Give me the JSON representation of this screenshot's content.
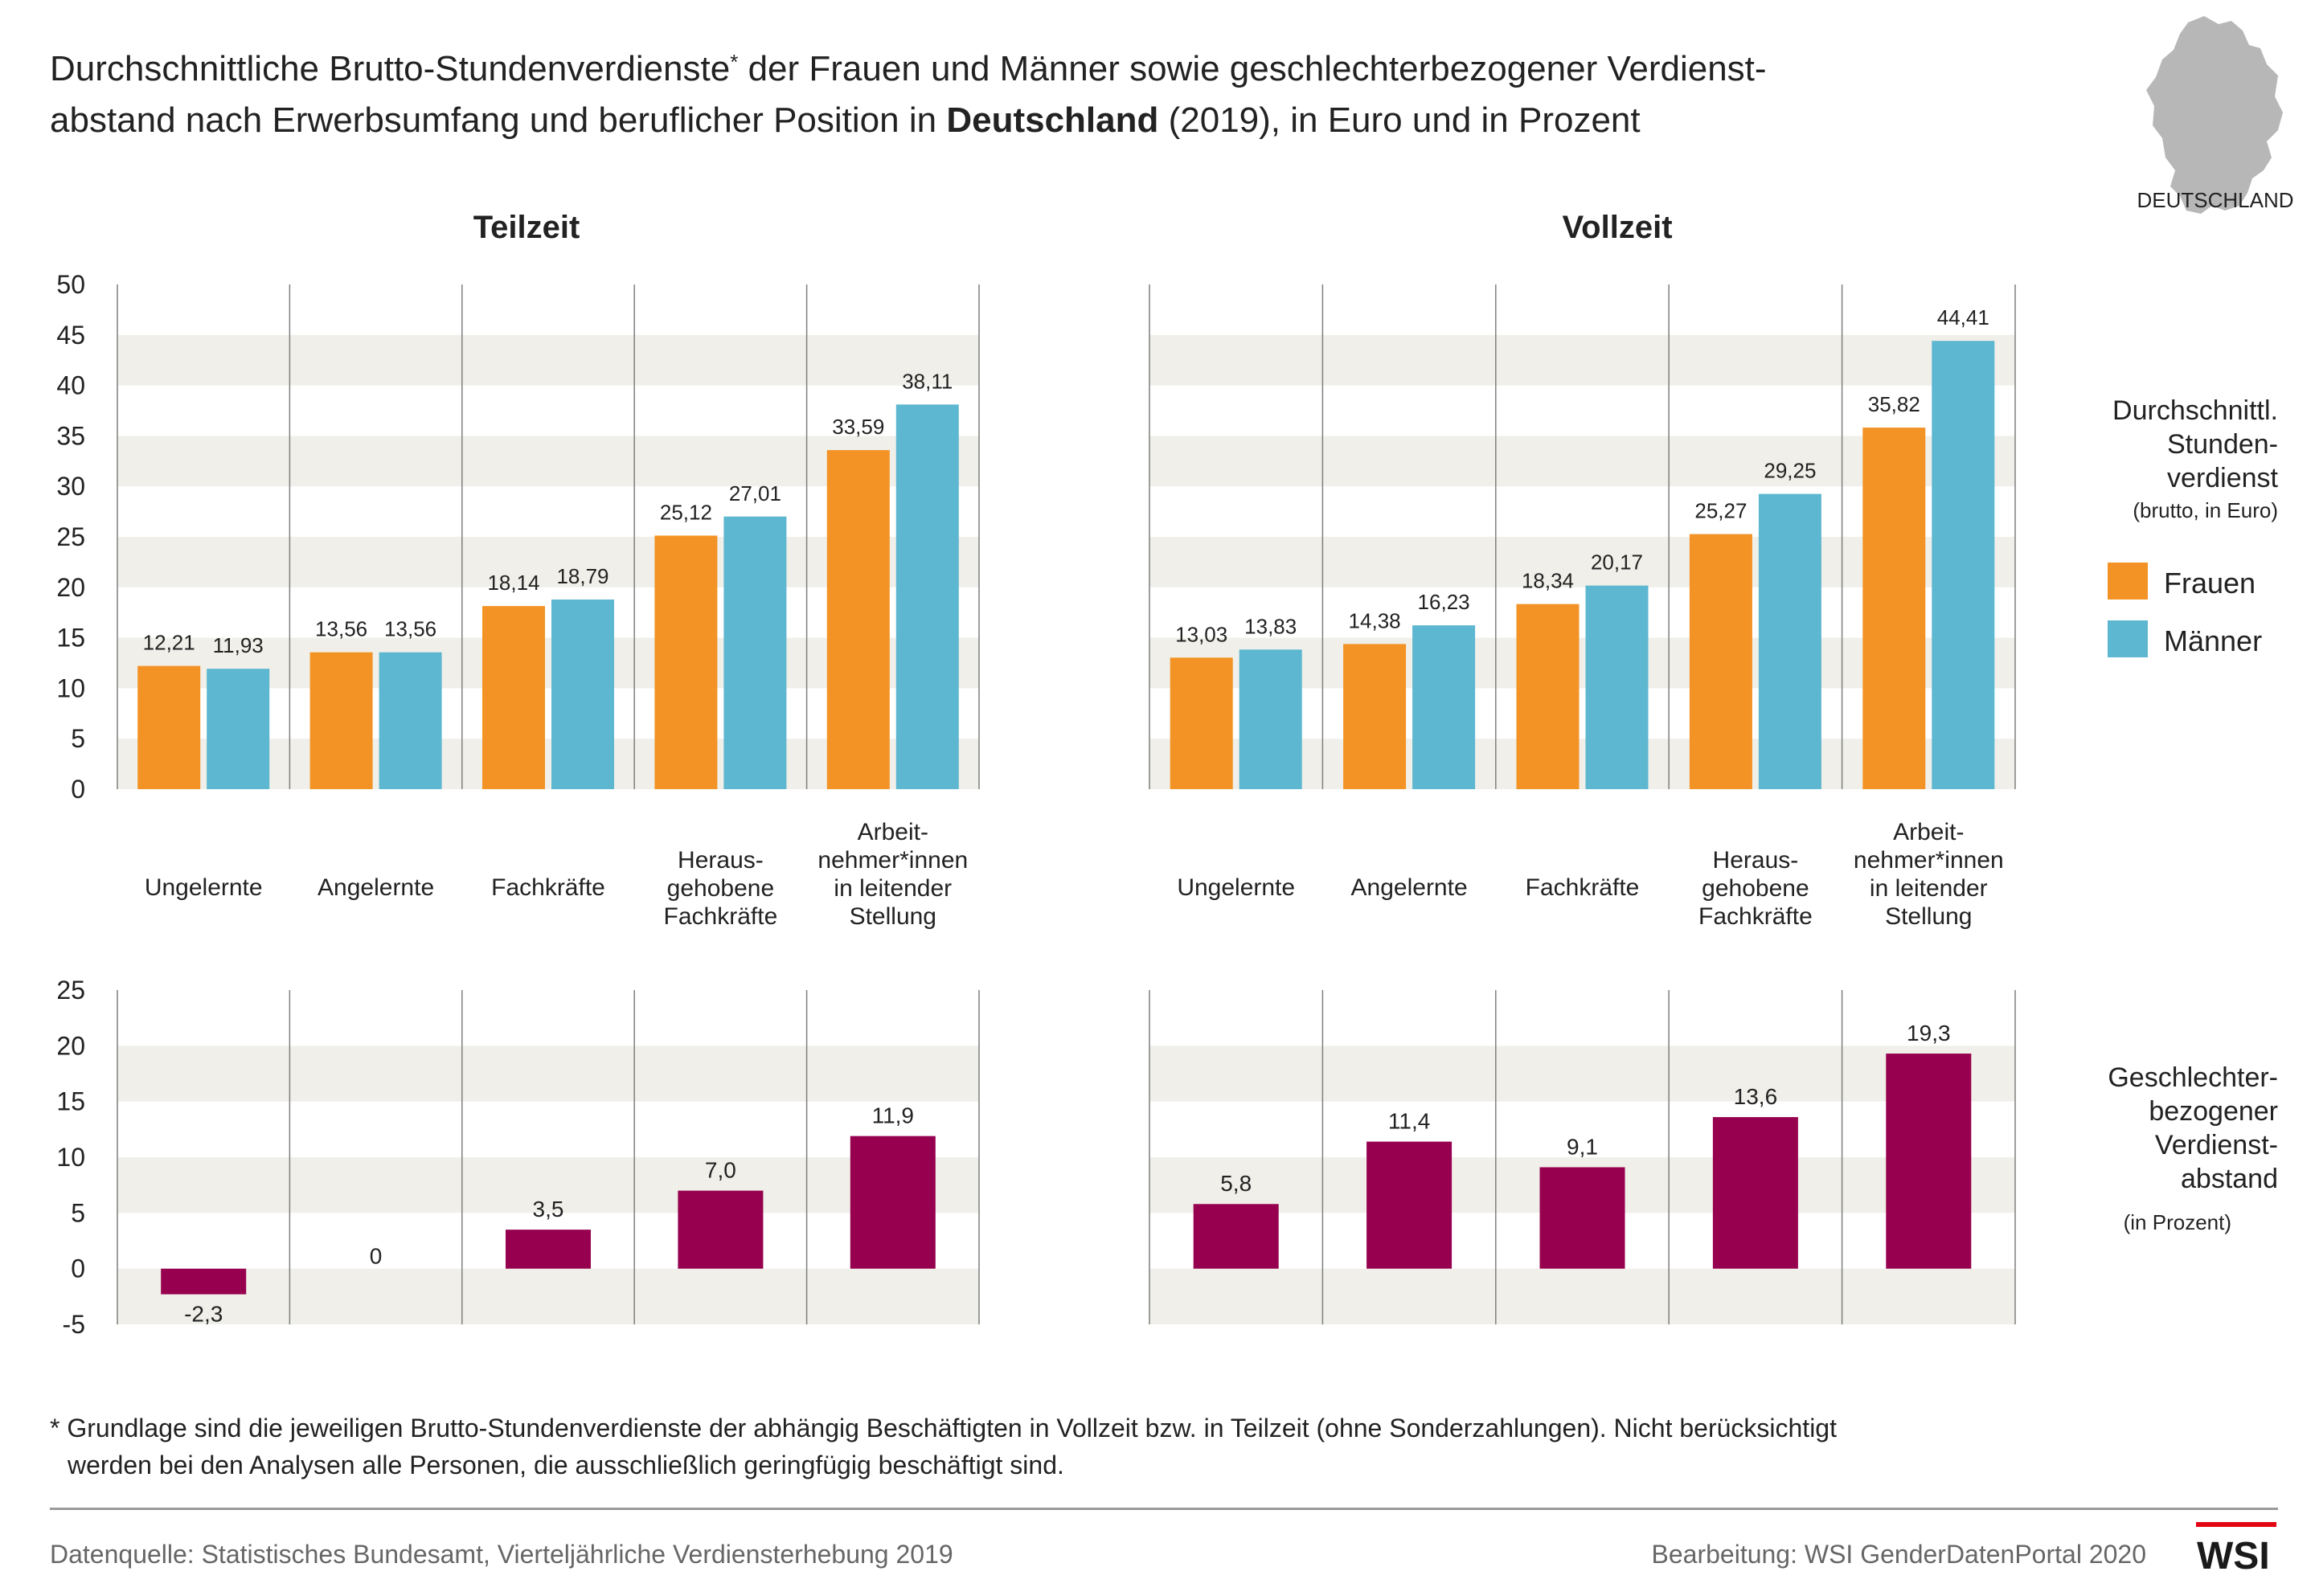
{
  "title": {
    "line1_a": "Durchschnittliche Brutto-Stundenverdienste",
    "line1_sup": "*",
    "line1_b": " der Frauen und Männer sowie geschlechterbezogener Verdienst-",
    "line2_a": "abstand nach Erwerbsumfang und beruflicher Position in ",
    "line2_bold": "Deutschland",
    "line2_b": " (2019), in Euro und in Prozent"
  },
  "map_label": "DEUTSCHLAND",
  "colors": {
    "frauen": "#F39325",
    "maenner": "#5DB7D0",
    "gap": "#97004F",
    "band": "#F0EFE9",
    "map": "#B7B7B7"
  },
  "legend": {
    "earnings_head": [
      "Durchschnittl.",
      "Stunden-",
      "verdienst"
    ],
    "earnings_sub": "(brutto, in Euro)",
    "frauen": "Frauen",
    "maenner": "Männer",
    "gap_head": [
      "Geschlechter-",
      "bezogener",
      "Verdienst-",
      "abstand"
    ],
    "gap_sub": "(in Prozent)"
  },
  "categories": [
    [
      "Ungelernte"
    ],
    [
      "Angelernte"
    ],
    [
      "Fachkräfte"
    ],
    [
      "Heraus-",
      "gehobene",
      "Fachkräfte"
    ],
    [
      "Arbeit-",
      "nehmer*innen",
      "in leitender",
      "Stellung"
    ]
  ],
  "chart_data": [
    {
      "type": "bar",
      "title": "Teilzeit",
      "categories": [
        "Ungelernte",
        "Angelernte",
        "Fachkräfte",
        "Herausgehobene Fachkräfte",
        "Arbeitnehmer*innen in leitender Stellung"
      ],
      "series": [
        {
          "name": "Frauen",
          "values": [
            12.21,
            13.56,
            18.14,
            25.12,
            33.59
          ],
          "labels": [
            "12,21",
            "13,56",
            "18,14",
            "25,12",
            "33,59"
          ]
        },
        {
          "name": "Männer",
          "values": [
            11.93,
            13.56,
            18.79,
            27.01,
            38.11
          ],
          "labels": [
            "11,93",
            "13,56",
            "18,79",
            "27,01",
            "38,11"
          ]
        }
      ],
      "ylim": [
        0,
        50
      ],
      "yticks": [
        0,
        5,
        10,
        15,
        20,
        25,
        30,
        35,
        40,
        45,
        50
      ]
    },
    {
      "type": "bar",
      "title": "Vollzeit",
      "categories": [
        "Ungelernte",
        "Angelernte",
        "Fachkräfte",
        "Herausgehobene Fachkräfte",
        "Arbeitnehmer*innen in leitender Stellung"
      ],
      "series": [
        {
          "name": "Frauen",
          "values": [
            13.03,
            14.38,
            18.34,
            25.27,
            35.82
          ],
          "labels": [
            "13,03",
            "14,38",
            "18,34",
            "25,27",
            "35,82"
          ]
        },
        {
          "name": "Männer",
          "values": [
            13.83,
            16.23,
            20.17,
            29.25,
            44.41
          ],
          "labels": [
            "13,83",
            "16,23",
            "20,17",
            "29,25",
            "44,41"
          ]
        }
      ],
      "ylim": [
        0,
        50
      ]
    },
    {
      "type": "bar",
      "subtitle": "Teilzeit",
      "categories": [
        "Ungelernte",
        "Angelernte",
        "Fachkräfte",
        "Herausgehobene Fachkräfte",
        "Arbeitnehmer*innen in leitender Stellung"
      ],
      "series": [
        {
          "values": [
            -2.3,
            0,
            3.5,
            7.0,
            11.9
          ],
          "labels": [
            "-2,3",
            "0",
            "3,5",
            "7,0",
            "11,9"
          ]
        }
      ],
      "ylim": [
        -5,
        25
      ],
      "yticks": [
        -5,
        0,
        5,
        10,
        15,
        20,
        25
      ]
    },
    {
      "type": "bar",
      "subtitle": "Vollzeit",
      "categories": [
        "Ungelernte",
        "Angelernte",
        "Fachkräfte",
        "Herausgehobene Fachkräfte",
        "Arbeitnehmer*innen in leitender Stellung"
      ],
      "series": [
        {
          "values": [
            5.8,
            11.4,
            9.1,
            13.6,
            19.3
          ],
          "labels": [
            "5,8",
            "11,4",
            "9,1",
            "13,6",
            "19,3"
          ]
        }
      ],
      "ylim": [
        -5,
        25
      ]
    }
  ],
  "footnote": [
    "* Grundlage sind die jeweiligen Brutto-Stundenverdienste der abhängig Beschäftigten in Vollzeit bzw. in Teilzeit (ohne Sonderzahlungen). Nicht berücksichtigt",
    "werden bei den Analysen alle Personen, die ausschließlich geringfügig beschäftigt sind."
  ],
  "source": "Datenquelle: Statistisches Bundesamt, Vierteljährliche Verdiensterhebung 2019",
  "credit": "Bearbeitung: WSI GenderDatenPortal 2020",
  "logo": "WSI"
}
